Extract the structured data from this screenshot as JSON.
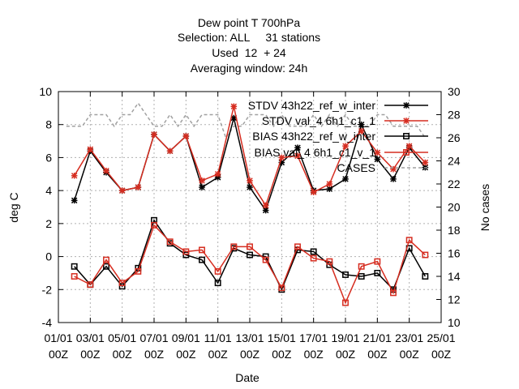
{
  "chart_data": {
    "type": "line",
    "title_lines": [
      "Dew point T 700hPa",
      "Selection: ALL     31 stations",
      "Used  12  + 24",
      "Averaging window: 24h"
    ],
    "xlabel": "Date",
    "ylabel": "deg C",
    "y2label": "No cases",
    "ylim": [
      -4,
      10
    ],
    "y2lim": [
      10,
      30
    ],
    "yticks": [
      "-4",
      "-2",
      "0",
      "2",
      "4",
      "6",
      "8",
      "10"
    ],
    "y2ticks": [
      "10",
      "12",
      "14",
      "16",
      "18",
      "20",
      "22",
      "24",
      "26",
      "28",
      "30"
    ],
    "xticks_top": [
      "01/01",
      "03/01",
      "05/01",
      "07/01",
      "09/01",
      "11/01",
      "13/01",
      "15/01",
      "17/01",
      "19/01",
      "21/01",
      "23/01",
      "25/01"
    ],
    "xticks_bottom": [
      "00Z",
      "00Z",
      "00Z",
      "00Z",
      "00Z",
      "00Z",
      "00Z",
      "00Z",
      "00Z",
      "00Z",
      "00Z",
      "00Z",
      "00Z"
    ],
    "xlim": [
      0,
      48
    ],
    "grid": true,
    "legend_position": "top-right",
    "x": [
      2,
      4,
      6,
      8,
      10,
      12,
      14,
      16,
      18,
      20,
      22,
      24,
      26,
      28,
      30,
      32,
      34,
      36,
      38,
      40,
      42,
      44,
      46
    ],
    "series": [
      {
        "name": "STDV 43h22_ref_w_inter",
        "values": [
          3.4,
          6.4,
          5.1,
          4.0,
          4.2,
          7.4,
          6.4,
          7.3,
          4.2,
          4.8,
          8.4,
          4.2,
          2.8,
          5.7,
          6.6,
          4.0,
          4.1,
          4.7,
          8.0,
          5.9,
          4.7,
          6.6,
          5.4
        ]
      },
      {
        "name": "STDV val_4 6h1_c1_1",
        "values": [
          4.9,
          6.5,
          5.2,
          4.0,
          4.2,
          7.4,
          6.4,
          7.3,
          4.6,
          5.0,
          9.1,
          4.6,
          3.1,
          6.0,
          6.1,
          3.9,
          4.4,
          6.7,
          7.6,
          6.3,
          5.3,
          6.7,
          5.7
        ]
      },
      {
        "name": "BIAS 43h22_ref_w_inter",
        "values": [
          -0.6,
          -1.7,
          -0.6,
          -1.8,
          -0.7,
          2.2,
          0.8,
          0.1,
          -0.2,
          -1.6,
          0.5,
          0.1,
          0.0,
          -2.0,
          0.4,
          0.3,
          -0.5,
          -1.1,
          -1.2,
          -1.0,
          -2.0,
          0.5,
          -1.2
        ]
      },
      {
        "name": "BIAS val_4 6h1_c1_v_1",
        "values": [
          -1.2,
          -1.7,
          -0.2,
          -1.6,
          -0.9,
          1.9,
          0.9,
          0.3,
          0.4,
          -0.9,
          0.6,
          0.6,
          -0.2,
          -1.9,
          0.6,
          -0.1,
          -0.3,
          -2.8,
          -0.6,
          -0.3,
          -2.2,
          1.0,
          0.1
        ]
      },
      {
        "name": "CASES",
        "axis": "right",
        "values": [
          27,
          27,
          27,
          28,
          28,
          28,
          27,
          28,
          28,
          29,
          28,
          27,
          27,
          28,
          27,
          28,
          27,
          28,
          28,
          28,
          26,
          27,
          27,
          28,
          28,
          28,
          27,
          28,
          27,
          27,
          27,
          28,
          27,
          28,
          27,
          28,
          27,
          27,
          27,
          28,
          28,
          27,
          27,
          27,
          27,
          26
        ],
        "x": [
          1,
          2,
          3,
          4,
          5,
          6,
          7,
          8,
          9,
          10,
          11,
          12,
          13,
          14,
          15,
          16,
          17,
          18,
          19,
          20,
          21,
          22,
          23,
          24,
          25,
          26,
          27,
          28,
          29,
          30,
          31,
          32,
          33,
          34,
          35,
          36,
          37,
          38,
          39,
          40,
          41,
          42,
          43,
          44,
          45,
          46
        ]
      }
    ],
    "colors": {
      "stdv_ref": "#000000",
      "stdv_val": "#d62d20",
      "bias_ref": "#000000",
      "bias_val": "#d62d20",
      "cases": "#a0a0a0",
      "grid": "#b0b0b0"
    }
  }
}
